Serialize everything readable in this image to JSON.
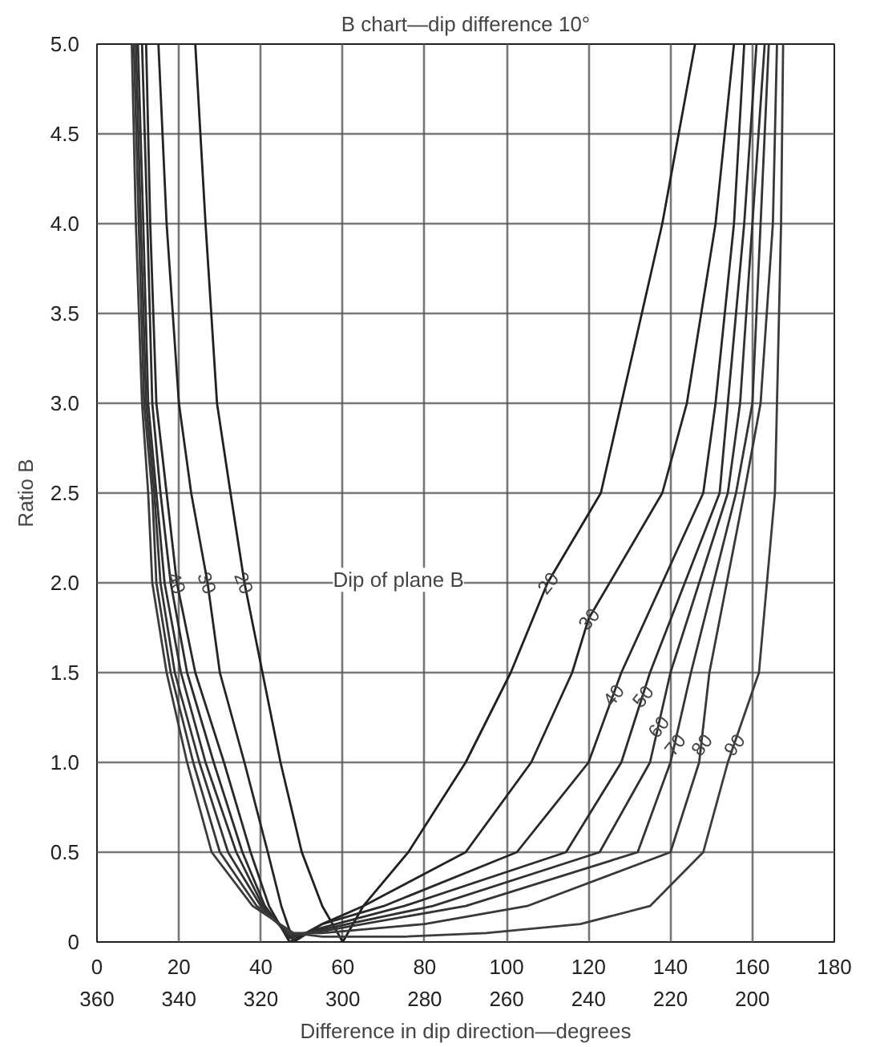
{
  "chart_data": {
    "type": "line",
    "title": "B chart—dip difference 10°",
    "xlabel": "Difference in dip direction—degrees",
    "ylabel": "Ratio B",
    "xlim": [
      0,
      180
    ],
    "xticks": [
      0,
      20,
      40,
      60,
      80,
      100,
      120,
      140,
      160,
      180
    ],
    "x2lim": [
      360,
      180
    ],
    "x2ticks": [
      360,
      340,
      320,
      300,
      280,
      260,
      240,
      220,
      200
    ],
    "ylim": [
      0,
      5
    ],
    "yticks": [
      {
        "value": 0,
        "label": "0"
      },
      {
        "value": 0.5,
        "label": "0.5"
      },
      {
        "value": 1,
        "label": "1.0"
      },
      {
        "value": 1.5,
        "label": "1.5"
      },
      {
        "value": 2,
        "label": "2.0"
      },
      {
        "value": 2.5,
        "label": "2.5"
      },
      {
        "value": 3,
        "label": "3.0"
      },
      {
        "value": 3.5,
        "label": "3.5"
      },
      {
        "value": 4,
        "label": "4.0"
      },
      {
        "value": 4.5,
        "label": "4.5"
      },
      {
        "value": 5,
        "label": "5.0"
      }
    ],
    "grid": true,
    "marker": "none",
    "line_style": "solid",
    "series": [
      {
        "color": "#202020",
        "x": [
          24,
          26.5,
          29.3,
          32.6,
          36,
          40.4,
          44.8,
          50,
          55,
          60,
          65,
          76,
          90,
          101,
          110,
          123,
          128,
          138,
          146
        ],
        "values": [
          5,
          4,
          3,
          2.5,
          2,
          1.5,
          1,
          0.5,
          0.2,
          0,
          0.2,
          0.5,
          1,
          1.5,
          2,
          2.5,
          3,
          4,
          5
        ]
      },
      {
        "color": "#242424",
        "x": [
          15,
          17,
          20,
          23,
          27,
          30,
          36,
          41.7,
          45,
          48,
          55,
          65,
          90,
          106,
          116,
          120,
          138,
          144,
          151,
          155.5
        ],
        "values": [
          5,
          4,
          3,
          2.5,
          2,
          1.5,
          1,
          0.5,
          0.2,
          0,
          0.1,
          0.2,
          0.5,
          1,
          1.5,
          1.8,
          2.5,
          3,
          4,
          5
        ]
      },
      {
        "color": "#282828",
        "x": [
          12,
          13,
          14.5,
          17,
          19.5,
          24,
          31,
          37.5,
          42,
          47,
          55,
          70,
          102.5,
          120,
          128,
          148,
          151,
          155.5,
          158
        ],
        "values": [
          5,
          4,
          3,
          2.5,
          2,
          1.5,
          1,
          0.5,
          0.2,
          0,
          0.1,
          0.2,
          0.5,
          1,
          1.5,
          2.5,
          3,
          4,
          5
        ]
      },
      {
        "color": "#2c2c2c",
        "x": [
          11,
          12.3,
          13.5,
          15.5,
          18,
          22,
          28.5,
          35.5,
          41,
          47,
          55,
          75,
          114.5,
          128,
          135,
          152,
          154,
          158,
          161
        ],
        "values": [
          5,
          4,
          3,
          2.5,
          2,
          1.5,
          1,
          0.5,
          0.2,
          0.02,
          0.08,
          0.2,
          0.5,
          1,
          1.5,
          2.5,
          3,
          4,
          5
        ]
      },
      {
        "color": "#303030",
        "x": [
          10,
          11.3,
          12.5,
          14.5,
          16.5,
          20.5,
          26.5,
          34,
          40.5,
          47,
          55,
          82,
          122.7,
          135,
          140,
          154,
          157,
          160,
          163
        ],
        "values": [
          5,
          4,
          3,
          2.5,
          2,
          1.5,
          1,
          0.5,
          0.2,
          0.03,
          0.07,
          0.2,
          0.5,
          1,
          1.5,
          2.5,
          3,
          4,
          5
        ]
      },
      {
        "color": "#343434",
        "x": [
          9.5,
          10.7,
          12,
          14,
          15.5,
          19,
          25,
          32,
          40,
          47,
          55,
          90,
          132,
          140,
          145,
          156,
          160,
          162,
          164
        ],
        "values": [
          5,
          4,
          3,
          2.5,
          2,
          1.5,
          1,
          0.5,
          0.2,
          0.04,
          0.06,
          0.2,
          0.5,
          1,
          1.5,
          2.5,
          3,
          4,
          5
        ]
      },
      {
        "color": "#383838",
        "x": [
          9,
          10.2,
          11.5,
          13.5,
          14.5,
          18,
          23.5,
          30,
          39,
          47,
          55,
          80,
          105,
          140,
          147,
          149.5,
          158,
          162,
          165,
          166
        ],
        "values": [
          5,
          4,
          3,
          2.5,
          2,
          1.5,
          1,
          0.5,
          0.2,
          0.05,
          0.05,
          0.1,
          0.2,
          0.5,
          1,
          1.5,
          2.5,
          3,
          4,
          5
        ]
      },
      {
        "color": "#3c3c3c",
        "x": [
          8.5,
          9.5,
          11,
          12.5,
          13.5,
          17,
          22,
          28,
          38,
          48,
          55,
          75,
          95,
          118,
          135,
          148,
          154,
          161.6,
          165.5,
          166,
          167,
          167.5
        ],
        "values": [
          5,
          4,
          3,
          2.5,
          2,
          1.5,
          1,
          0.5,
          0.2,
          0.05,
          0.03,
          0.03,
          0.05,
          0.1,
          0.2,
          0.5,
          1,
          1.5,
          2.5,
          3,
          4,
          5
        ]
      }
    ],
    "annotations": [
      {
        "text": "20",
        "x": 36,
        "y": 2
      },
      {
        "text": "30",
        "x": 27,
        "y": 2
      },
      {
        "text": "40",
        "x": 19.5,
        "y": 2
      },
      {
        "text": "20",
        "x": 110,
        "y": 2
      },
      {
        "text": "30",
        "x": 120,
        "y": 1.8
      },
      {
        "text": "40",
        "x": 126,
        "y": 1.375
      },
      {
        "text": "50",
        "x": 133.2,
        "y": 1.37
      },
      {
        "text": "60",
        "x": 137,
        "y": 1.2
      },
      {
        "text": "70",
        "x": 141,
        "y": 1.1
      },
      {
        "text": "80",
        "x": 147.5,
        "y": 1.1
      },
      {
        "text": "90",
        "x": 155.5,
        "y": 1.1
      },
      "Dip of plane B"
    ]
  }
}
